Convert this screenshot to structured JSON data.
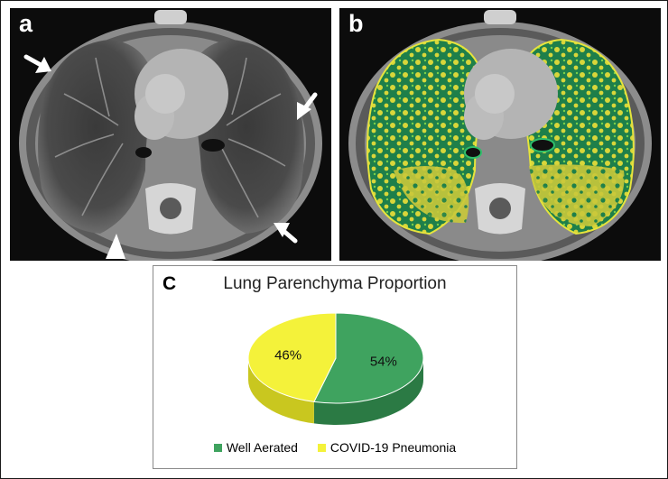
{
  "panels": {
    "a": {
      "letter": "a"
    },
    "b": {
      "letter": "b"
    },
    "c": {
      "letter": "C"
    }
  },
  "colors": {
    "well_aerated": "#3fa35f",
    "covid_pneumonia": "#f4f23a",
    "ct_background": "#0c0c0c",
    "overlay_green": "#1e7f4a",
    "overlay_yellow": "#d8d63a"
  },
  "icons": {
    "arrows": [
      "arrow-icon",
      "arrow-icon",
      "arrow-icon",
      "arrow-icon",
      "arrowhead-icon"
    ]
  },
  "chart_data": {
    "type": "pie",
    "title": "Lung Parenchyma Proportion",
    "categories": [
      "Well Aerated",
      "COVID-19 Pneumonia"
    ],
    "values": [
      54,
      46
    ],
    "labels": [
      "54%",
      "46%"
    ],
    "legend": "bottom",
    "style": "3d"
  }
}
